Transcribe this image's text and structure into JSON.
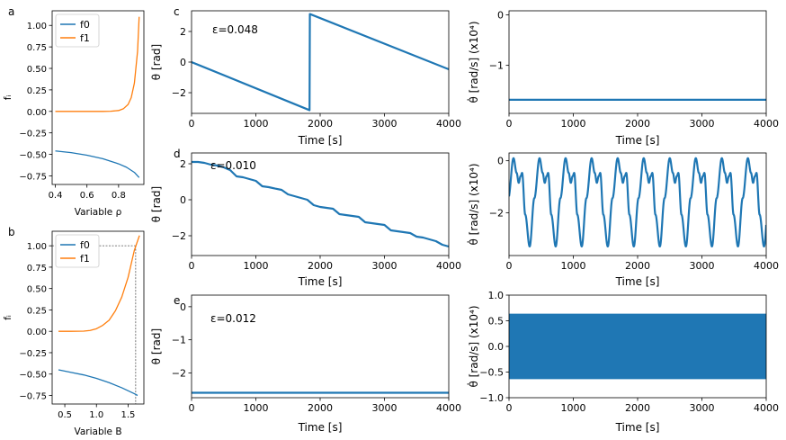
{
  "figure": {
    "colors": {
      "c0": "#1f77b4",
      "c1": "#ff7f0e",
      "ref": "#555555"
    }
  },
  "chart_data": [
    {
      "id": "a",
      "panel_letter": "a",
      "type": "line",
      "xlabel": "Variable ρ",
      "ylabel": "fᵢ",
      "xlim": [
        0.38,
        0.96
      ],
      "ylim": [
        -0.85,
        1.17
      ],
      "xticks": [
        0.4,
        0.6,
        0.8
      ],
      "xtick_labels": [
        "0.4",
        "0.6",
        "0.8"
      ],
      "yticks": [
        -0.75,
        -0.5,
        -0.25,
        0.0,
        0.25,
        0.5,
        0.75,
        1.0
      ],
      "ytick_labels": [
        "−0.75",
        "−0.50",
        "−0.25",
        "0.00",
        "0.25",
        "0.50",
        "0.75",
        "1.00"
      ],
      "legend": {
        "position": "upper-left",
        "entries": [
          "f0",
          "f1"
        ]
      },
      "series": [
        {
          "name": "f0",
          "color": "c0",
          "x": [
            0.4,
            0.5,
            0.6,
            0.7,
            0.8,
            0.85,
            0.9,
            0.93
          ],
          "y": [
            -0.46,
            -0.48,
            -0.51,
            -0.55,
            -0.61,
            -0.65,
            -0.71,
            -0.77
          ]
        },
        {
          "name": "f1",
          "color": "c1",
          "x": [
            0.4,
            0.5,
            0.6,
            0.7,
            0.75,
            0.8,
            0.83,
            0.86,
            0.88,
            0.9,
            0.92,
            0.93
          ],
          "y": [
            0.0,
            0.0,
            0.0,
            0.0,
            0.002,
            0.01,
            0.03,
            0.08,
            0.16,
            0.33,
            0.7,
            1.1
          ]
        }
      ]
    },
    {
      "id": "b",
      "panel_letter": "b",
      "type": "line",
      "xlabel": "Variable B",
      "ylabel": "fᵢ",
      "xlim": [
        0.3,
        1.75
      ],
      "ylim": [
        -0.85,
        1.17
      ],
      "xticks": [
        0.5,
        1.0,
        1.5
      ],
      "xtick_labels": [
        "0.5",
        "1.0",
        "1.5"
      ],
      "yticks": [
        -0.75,
        -0.5,
        -0.25,
        0.0,
        0.25,
        0.5,
        0.75,
        1.0
      ],
      "ytick_labels": [
        "−0.75",
        "−0.50",
        "−0.25",
        "0.00",
        "0.25",
        "0.50",
        "0.75",
        "1.00"
      ],
      "legend": {
        "position": "upper-left",
        "entries": [
          "f0",
          "f1"
        ]
      },
      "reference": {
        "x": 1.62,
        "y": 1.0
      },
      "series": [
        {
          "name": "f0",
          "color": "c0",
          "x": [
            0.4,
            0.6,
            0.8,
            1.0,
            1.2,
            1.4,
            1.6,
            1.65
          ],
          "y": [
            -0.45,
            -0.48,
            -0.51,
            -0.55,
            -0.6,
            -0.66,
            -0.73,
            -0.75
          ]
        },
        {
          "name": "f1",
          "color": "c1",
          "x": [
            0.4,
            0.6,
            0.8,
            0.9,
            1.0,
            1.1,
            1.2,
            1.3,
            1.4,
            1.5,
            1.6,
            1.68
          ],
          "y": [
            0.0,
            0.0,
            0.002,
            0.01,
            0.03,
            0.07,
            0.13,
            0.24,
            0.4,
            0.63,
            0.95,
            1.12
          ]
        }
      ]
    },
    {
      "id": "c-left",
      "panel_letter": "c",
      "type": "line",
      "annotation": "ε=0.048",
      "xlabel": "Time [s]",
      "ylabel": "θ [rad]",
      "xlim": [
        0,
        4000
      ],
      "ylim": [
        -3.35,
        3.35
      ],
      "xticks": [
        0,
        1000,
        2000,
        3000,
        4000
      ],
      "xtick_labels": [
        "0",
        "1000",
        "2000",
        "3000",
        "4000"
      ],
      "yticks": [
        -2,
        0,
        2
      ],
      "ytick_labels": [
        "−2",
        "0",
        "2"
      ],
      "series": [
        {
          "color": "c0",
          "x": [
            0,
            1835,
            1835,
            1840,
            4000
          ],
          "y": [
            0.0,
            -3.14,
            -3.14,
            3.14,
            -0.47
          ]
        }
      ]
    },
    {
      "id": "c-right",
      "type": "line",
      "xlabel": "Time [s]",
      "ylabel": "θ̇ [rad/s] (x10⁴)",
      "xlim": [
        0,
        4000
      ],
      "ylim": [
        -1.95,
        0.08
      ],
      "xticks": [
        0,
        1000,
        2000,
        3000,
        4000
      ],
      "xtick_labels": [
        "0",
        "1000",
        "2000",
        "3000",
        "4000"
      ],
      "yticks": [
        -1,
        0
      ],
      "ytick_labels": [
        "−1",
        "0"
      ],
      "series": [
        {
          "color": "c0",
          "x": [
            0,
            4000
          ],
          "y": [
            -1.68,
            -1.68
          ]
        }
      ]
    },
    {
      "id": "d-left",
      "panel_letter": "d",
      "type": "line",
      "annotation": "ε=0.010",
      "xlabel": "Time [s]",
      "ylabel": "θ [rad]",
      "xlim": [
        0,
        4000
      ],
      "ylim": [
        -3.1,
        2.6
      ],
      "xticks": [
        0,
        1000,
        2000,
        3000,
        4000
      ],
      "xtick_labels": [
        "0",
        "1000",
        "2000",
        "3000",
        "4000"
      ],
      "yticks": [
        -2,
        0,
        2
      ],
      "ytick_labels": [
        "−2",
        "0",
        "2"
      ],
      "series": [
        {
          "color": "c0",
          "x": [
            0,
            100,
            200,
            300,
            400,
            500,
            600,
            700,
            800,
            900,
            1000,
            1100,
            1200,
            1300,
            1400,
            1500,
            1600,
            1700,
            1800,
            1900,
            2000,
            2100,
            2200,
            2300,
            2400,
            2500,
            2600,
            2700,
            2800,
            2900,
            3000,
            3100,
            3200,
            3300,
            3400,
            3500,
            3600,
            3700,
            3800,
            3900,
            4000
          ],
          "y": [
            2.1,
            2.1,
            2.05,
            1.95,
            1.9,
            1.8,
            1.65,
            1.3,
            1.25,
            1.15,
            1.05,
            0.75,
            0.7,
            0.62,
            0.55,
            0.3,
            0.2,
            0.1,
            -0.0,
            -0.3,
            -0.4,
            -0.45,
            -0.5,
            -0.8,
            -0.85,
            -0.9,
            -0.95,
            -1.25,
            -1.3,
            -1.35,
            -1.4,
            -1.7,
            -1.75,
            -1.8,
            -1.85,
            -2.05,
            -2.1,
            -2.2,
            -2.3,
            -2.5,
            -2.6
          ]
        }
      ]
    },
    {
      "id": "d-right",
      "type": "line",
      "xlabel": "Time [s]",
      "ylabel": "θ̇ [rad/s] (x10⁴)",
      "xlim": [
        0,
        4000
      ],
      "ylim": [
        -3.65,
        0.3
      ],
      "xticks": [
        0,
        1000,
        2000,
        3000,
        4000
      ],
      "xtick_labels": [
        "0",
        "1000",
        "2000",
        "3000",
        "4000"
      ],
      "yticks": [
        -2,
        0
      ],
      "ytick_labels": [
        "−2",
        "0"
      ],
      "oscillation": {
        "period": 405,
        "phase": 70,
        "max": 0.1,
        "dip": -0.85,
        "min": -3.3
      },
      "series": [
        {
          "color": "c0"
        }
      ]
    },
    {
      "id": "e-left",
      "panel_letter": "e",
      "type": "line",
      "annotation": "ε=0.012",
      "xlabel": "Time [s]",
      "ylabel": "θ [rad]",
      "xlim": [
        0,
        4000
      ],
      "ylim": [
        -2.75,
        0.35
      ],
      "xticks": [
        0,
        1000,
        2000,
        3000,
        4000
      ],
      "xtick_labels": [
        "0",
        "1000",
        "2000",
        "3000",
        "4000"
      ],
      "yticks": [
        -2,
        -1,
        0
      ],
      "ytick_labels": [
        "−2",
        "−1",
        "0"
      ],
      "series": [
        {
          "color": "c0",
          "x": [
            0,
            4000
          ],
          "y": [
            -2.6,
            -2.6
          ]
        }
      ]
    },
    {
      "id": "e-right",
      "type": "area",
      "xlabel": "Time [s]",
      "ylabel": "θ̇ [rad/s] (x10⁴)",
      "xlim": [
        0,
        4000
      ],
      "ylim": [
        -1.0,
        1.0
      ],
      "xticks": [
        0,
        1000,
        2000,
        3000,
        4000
      ],
      "xtick_labels": [
        "0",
        "1000",
        "2000",
        "3000",
        "4000"
      ],
      "yticks": [
        -1.0,
        -0.5,
        0.0,
        0.5,
        1.0
      ],
      "ytick_labels": [
        "−1.0",
        "−0.5",
        "0.0",
        "0.5",
        "1.0"
      ],
      "series": [
        {
          "color": "c0",
          "x": [
            0,
            4000
          ],
          "upper": [
            0.63,
            0.63
          ],
          "lower": [
            -0.63,
            -0.63
          ]
        }
      ]
    }
  ]
}
